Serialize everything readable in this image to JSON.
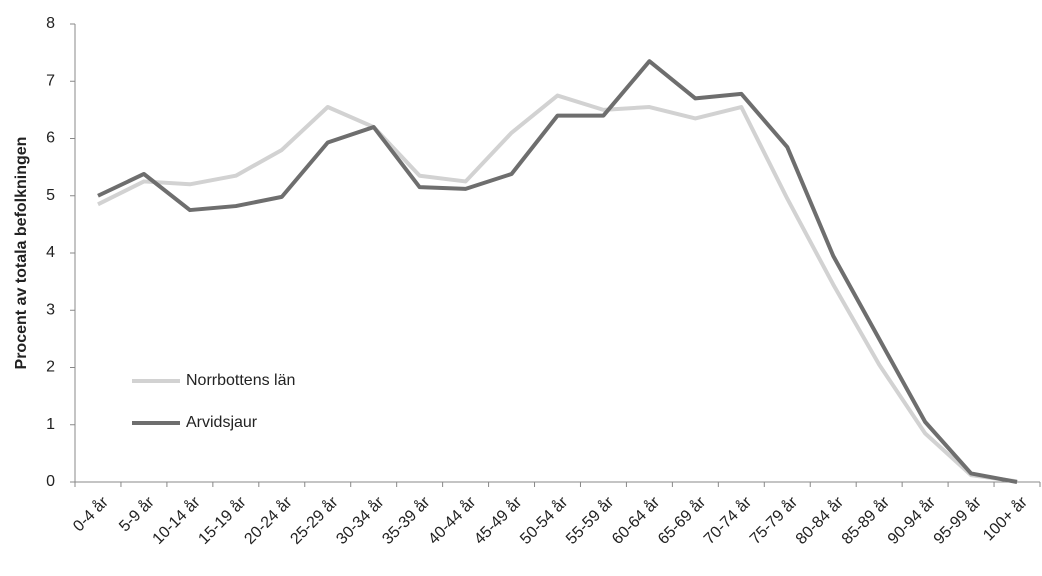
{
  "chart_data": {
    "type": "line",
    "y_label": "Procent av totala befolkningen",
    "categories": [
      "0-4 år",
      "5-9 år",
      "10-14 år",
      "15-19 år",
      "20-24 år",
      "25-29 år",
      "30-34 år",
      "35-39 år",
      "40-44 år",
      "45-49 år",
      "50-54 år",
      "55-59 år",
      "60-64 år",
      "65-69 år",
      "70-74 år",
      "75-79 år",
      "80-84 år",
      "85-89 år",
      "90-94 år",
      "95-99 år",
      "100+ år"
    ],
    "series": [
      {
        "name": "Norrbottens län",
        "color": "#d2d2d2",
        "values": [
          4.85,
          5.25,
          5.2,
          5.35,
          5.8,
          6.55,
          6.2,
          5.35,
          5.25,
          6.1,
          6.75,
          6.5,
          6.55,
          6.35,
          6.55,
          4.95,
          3.45,
          2.05,
          0.85,
          0.12,
          0.01
        ]
      },
      {
        "name": "Arvidsjaur",
        "color": "#6e6e6e",
        "values": [
          5.0,
          5.38,
          4.75,
          4.82,
          4.98,
          5.93,
          6.2,
          5.15,
          5.12,
          5.38,
          6.4,
          6.4,
          7.35,
          6.7,
          6.78,
          5.85,
          3.95,
          2.5,
          1.05,
          0.15,
          0.0
        ]
      }
    ],
    "ylim": [
      0,
      8
    ],
    "yticks": [
      0,
      1,
      2,
      3,
      4,
      5,
      6,
      7,
      8
    ],
    "grid": false,
    "legend": "lower left"
  }
}
